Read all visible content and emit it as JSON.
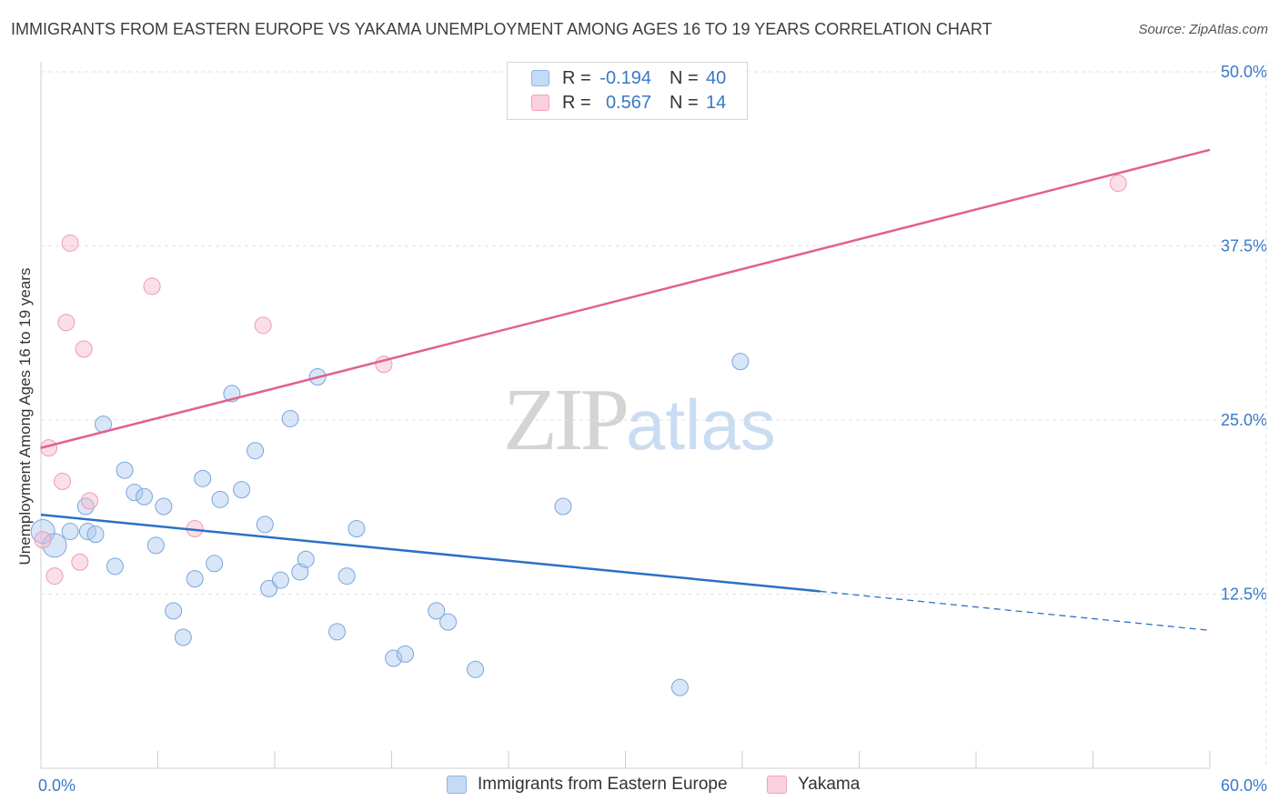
{
  "title": "IMMIGRANTS FROM EASTERN EUROPE VS YAKAMA UNEMPLOYMENT AMONG AGES 16 TO 19 YEARS CORRELATION CHART",
  "source": "Source: ZipAtlas.com",
  "watermark": {
    "zip": "ZIP",
    "atlas": "atlas"
  },
  "legend": {
    "r_label": "R =",
    "n_label": "N =",
    "rows": [
      {
        "r": "-0.194",
        "n": "40",
        "color": "#a9c8ee"
      },
      {
        "r": "0.567",
        "n": "14",
        "color": "#f6b8cb"
      }
    ]
  },
  "chart_data": {
    "type": "scatter",
    "title": "IMMIGRANTS FROM EASTERN EUROPE VS YAKAMA UNEMPLOYMENT AMONG AGES 16 TO 19 YEARS CORRELATION CHART",
    "xlabel": "",
    "ylabel": "Unemployment Among Ages 16 to 19 years",
    "xlim": [
      0,
      60
    ],
    "ylim": [
      0,
      50
    ],
    "x_tick_labels": [
      "0.0%",
      "60.0%"
    ],
    "y_ticks": [
      12.5,
      25.0,
      37.5,
      50.0
    ],
    "y_tick_labels": [
      "12.5%",
      "25.0%",
      "37.5%",
      "50.0%"
    ],
    "grid": true,
    "series": [
      {
        "name": "Immigrants from Eastern Europe",
        "color": "#a9c8ee",
        "line_color": "#2a70c8",
        "points": [
          [
            0.1,
            17.0
          ],
          [
            0.7,
            16.0
          ],
          [
            1.5,
            17.0
          ],
          [
            2.4,
            17.0
          ],
          [
            2.3,
            18.8
          ],
          [
            2.8,
            16.8
          ],
          [
            3.2,
            24.7
          ],
          [
            3.8,
            14.5
          ],
          [
            4.3,
            21.4
          ],
          [
            4.8,
            19.8
          ],
          [
            5.3,
            19.5
          ],
          [
            5.9,
            16.0
          ],
          [
            6.3,
            18.8
          ],
          [
            6.8,
            11.3
          ],
          [
            7.3,
            9.4
          ],
          [
            7.9,
            13.6
          ],
          [
            8.3,
            20.8
          ],
          [
            8.9,
            14.7
          ],
          [
            9.2,
            19.3
          ],
          [
            9.8,
            26.9
          ],
          [
            10.3,
            20.0
          ],
          [
            11.0,
            22.8
          ],
          [
            11.5,
            17.5
          ],
          [
            11.7,
            12.9
          ],
          [
            12.3,
            13.5
          ],
          [
            12.8,
            25.1
          ],
          [
            13.3,
            14.1
          ],
          [
            13.6,
            15.0
          ],
          [
            14.2,
            28.1
          ],
          [
            15.2,
            9.8
          ],
          [
            15.7,
            13.8
          ],
          [
            16.2,
            17.2
          ],
          [
            18.1,
            7.9
          ],
          [
            18.7,
            8.2
          ],
          [
            20.3,
            11.3
          ],
          [
            20.9,
            10.5
          ],
          [
            22.3,
            7.1
          ],
          [
            26.8,
            18.8
          ],
          [
            32.8,
            5.8
          ],
          [
            35.9,
            29.2
          ]
        ],
        "trend": {
          "x": [
            0,
            40
          ],
          "y": [
            18.2,
            12.7
          ],
          "dashed_to": [
            60,
            9.9
          ]
        }
      },
      {
        "name": "Yakama",
        "color": "#f6b8cb",
        "line_color": "#e0628c",
        "points": [
          [
            0.1,
            16.4
          ],
          [
            0.4,
            23.0
          ],
          [
            0.7,
            13.8
          ],
          [
            1.1,
            20.6
          ],
          [
            1.3,
            32.0
          ],
          [
            1.5,
            37.7
          ],
          [
            2.0,
            14.8
          ],
          [
            2.2,
            30.1
          ],
          [
            2.5,
            19.2
          ],
          [
            5.7,
            34.6
          ],
          [
            7.9,
            17.2
          ],
          [
            11.4,
            31.8
          ],
          [
            17.6,
            29.0
          ],
          [
            55.3,
            42.0
          ]
        ],
        "trend": {
          "x": [
            0,
            60
          ],
          "y": [
            23.0,
            44.4
          ]
        }
      }
    ]
  }
}
